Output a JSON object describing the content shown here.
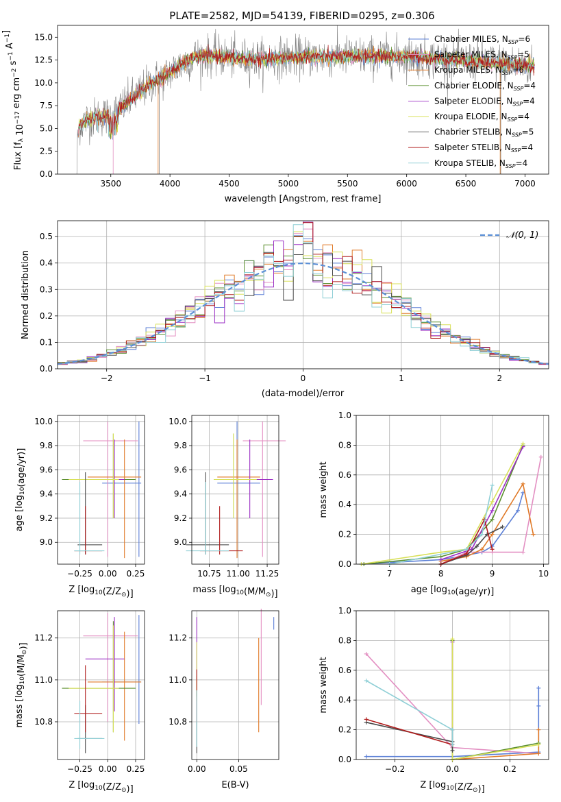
{
  "colors": {
    "miles_chabrier": "#5b7fd6",
    "miles_salpeter": "#e38fc2",
    "miles_kroupa": "#e07a28",
    "elodie_chabrier": "#5b8f2f",
    "elodie_salpeter": "#9b2fc4",
    "elodie_kroupa": "#d8e058",
    "stelib_chabrier": "#4a4a4a",
    "stelib_salpeter": "#b01c1c",
    "stelib_kroupa": "#8fcfd6",
    "gray_spectrum": "#808080",
    "gauss": "#5b8fd6",
    "grid": "#b0b0b0"
  },
  "chart_data": [
    {
      "id": "spectrum",
      "type": "line",
      "title": "PLATE=2582, MJD=54139, FIBERID=0295, z=0.306",
      "xlabel": "wavelength [Angstrom, rest frame]",
      "ylabel": "Flux [f_λ 10^-17 erg cm^-2 s^-1 A^-1]",
      "xlim": [
        3050,
        7200
      ],
      "ylim": [
        0,
        16.3
      ],
      "xticks": [
        3500,
        4000,
        4500,
        5000,
        5500,
        6000,
        6500,
        7000
      ],
      "yticks": [
        0.0,
        2.5,
        5.0,
        7.5,
        10.0,
        12.5,
        15.0
      ],
      "grid": false,
      "legend_position": "top-right",
      "legend": [
        {
          "label": "Chabrier MILES, N_SSP=6",
          "color_key": "miles_chabrier"
        },
        {
          "label": "Salpeter MILES, N_SSP=5",
          "color_key": "miles_salpeter"
        },
        {
          "label": "Kroupa MILES, N_SSP=6",
          "color_key": "miles_kroupa"
        },
        {
          "label": "Chabrier ELODIE, N_SSP=4",
          "color_key": "elodie_chabrier"
        },
        {
          "label": "Salpeter ELODIE, N_SSP=4",
          "color_key": "elodie_salpeter"
        },
        {
          "label": "Kroupa ELODIE, N_SSP=4",
          "color_key": "elodie_kroupa"
        },
        {
          "label": "Chabrier STELIB, N_SSP=5",
          "color_key": "stelib_chabrier"
        },
        {
          "label": "Salpeter STELIB, N_SSP=4",
          "color_key": "stelib_salpeter"
        },
        {
          "label": "Kroupa STELIB, N_SSP=4",
          "color_key": "stelib_kroupa"
        }
      ],
      "envelope": {
        "x": [
          3200,
          3230,
          3300,
          3400,
          3500,
          3560,
          3650,
          3750,
          3800,
          3850,
          3900,
          3950,
          4000,
          4100,
          4200,
          4300,
          4400,
          4500,
          4600,
          4700,
          4800,
          4900,
          5000,
          5200,
          5400,
          5600,
          5800,
          6000,
          6200,
          6400,
          6600,
          6800,
          7000,
          7100
        ],
        "y": [
          0,
          5.3,
          6.0,
          6.3,
          6.4,
          7.0,
          8.0,
          9.0,
          9.6,
          10.0,
          10.4,
          10.6,
          11.2,
          12.0,
          12.8,
          13.0,
          12.9,
          12.8,
          12.6,
          12.6,
          12.6,
          12.7,
          12.8,
          12.9,
          12.9,
          12.9,
          12.9,
          12.9,
          12.7,
          12.5,
          12.3,
          12.1,
          11.9,
          11.8
        ]
      }
    },
    {
      "id": "residuals",
      "type": "line",
      "xlabel": "(data-model)/error",
      "ylabel": "Normed distribution",
      "xlim": [
        -2.5,
        2.5
      ],
      "ylim": [
        0,
        0.56
      ],
      "xticks": [
        -2,
        -1,
        0,
        1,
        2
      ],
      "yticks": [
        0.0,
        0.1,
        0.2,
        0.3,
        0.4,
        0.5
      ],
      "grid": true,
      "legend_position": "top-right",
      "legend": [
        {
          "label": "𝒩(0, 1)",
          "color_key": "gauss"
        }
      ],
      "bin_edges_range": [
        -2.5,
        2.5
      ],
      "bin_count": 50
    },
    {
      "id": "age_vs_Z",
      "type": "scatter",
      "xlabel": "Z [log10(Z/Z☉)]",
      "ylabel": "age  [log10(age/yr)]",
      "xlim": [
        -0.45,
        0.33
      ],
      "ylim": [
        8.82,
        10.05
      ],
      "xticks": [
        -0.25,
        0.0,
        0.25
      ],
      "yticks": [
        9.0,
        9.2,
        9.4,
        9.6,
        9.8,
        10.0
      ],
      "grid": true
    },
    {
      "id": "age_vs_mass",
      "type": "scatter",
      "xlabel": "mass [log10(M/M☉)]",
      "xlim": [
        10.6,
        11.35
      ],
      "ylim": [
        8.82,
        10.05
      ],
      "xticks": [
        10.75,
        11.0,
        11.25
      ],
      "yticks": [
        9.0,
        9.2,
        9.4,
        9.6,
        9.8,
        10.0
      ],
      "grid": true
    },
    {
      "id": "mw_vs_age",
      "type": "line",
      "xlabel": "age  [log10(age/yr)]",
      "ylabel": "mass weight",
      "xlim": [
        6.35,
        10.1
      ],
      "ylim": [
        0,
        1.0
      ],
      "xticks": [
        7,
        8,
        9,
        10
      ],
      "yticks": [
        0.0,
        0.2,
        0.4,
        0.6,
        0.8,
        1.0
      ],
      "grid": true,
      "series": [
        {
          "color_key": "miles_chabrier",
          "x": [
            6.45,
            8.0,
            8.5,
            8.8,
            9.0,
            9.5,
            9.6
          ],
          "y": [
            0.0,
            0.03,
            0.06,
            0.08,
            0.12,
            0.36,
            0.48
          ]
        },
        {
          "color_key": "miles_salpeter",
          "x": [
            8.0,
            8.5,
            9.0,
            9.6,
            9.95
          ],
          "y": [
            0.0,
            0.08,
            0.08,
            0.08,
            0.72
          ]
        },
        {
          "color_key": "miles_kroupa",
          "x": [
            8.0,
            8.5,
            8.8,
            9.0,
            9.6,
            9.8
          ],
          "y": [
            0.02,
            0.05,
            0.1,
            0.2,
            0.54,
            0.2
          ]
        },
        {
          "color_key": "elodie_chabrier",
          "x": [
            6.5,
            8.0,
            8.5,
            9.0,
            9.6
          ],
          "y": [
            0.0,
            0.05,
            0.1,
            0.3,
            0.8
          ]
        },
        {
          "color_key": "elodie_salpeter",
          "x": [
            8.0,
            8.6,
            9.0,
            9.6
          ],
          "y": [
            0.03,
            0.1,
            0.36,
            0.79
          ]
        },
        {
          "color_key": "elodie_kroupa",
          "x": [
            6.45,
            8.0,
            8.5,
            9.0,
            9.6
          ],
          "y": [
            0.0,
            0.08,
            0.1,
            0.42,
            0.81
          ]
        },
        {
          "color_key": "stelib_chabrier",
          "x": [
            8.0,
            8.5,
            8.7,
            8.9,
            9.2
          ],
          "y": [
            0.0,
            0.06,
            0.12,
            0.2,
            0.25
          ]
        },
        {
          "color_key": "stelib_salpeter",
          "x": [
            8.0,
            8.5,
            8.85,
            9.0
          ],
          "y": [
            0.0,
            0.07,
            0.3,
            0.1
          ]
        },
        {
          "color_key": "stelib_kroupa",
          "x": [
            7.0,
            8.5,
            8.8,
            9.0
          ],
          "y": [
            0.0,
            0.1,
            0.2,
            0.53
          ]
        }
      ]
    },
    {
      "id": "mass_vs_Z",
      "type": "scatter",
      "xlabel": "Z [log10(Z/Z☉)]",
      "ylabel": "mass [log10(M/M☉)]",
      "xlim": [
        -0.45,
        0.33
      ],
      "ylim": [
        10.62,
        11.33
      ],
      "xticks": [
        -0.25,
        0.0,
        0.25
      ],
      "yticks": [
        10.8,
        11.0,
        11.2
      ],
      "grid": true
    },
    {
      "id": "mass_vs_ebv",
      "type": "scatter",
      "xlabel": "E(B-V)",
      "xlim": [
        -0.006,
        0.098
      ],
      "ylim": [
        10.62,
        11.33
      ],
      "xticks": [
        0.0,
        0.05
      ],
      "yticks": [
        10.8,
        11.0,
        11.2
      ],
      "grid": true
    },
    {
      "id": "mw_vs_Z",
      "type": "line",
      "xlabel": "Z [log10(Z/Z☉)]",
      "ylabel": "mass weight",
      "xlim": [
        -0.335,
        0.335
      ],
      "ylim": [
        0,
        1.0
      ],
      "xticks": [
        -0.2,
        0.0,
        0.2
      ],
      "yticks": [
        0.0,
        0.2,
        0.4,
        0.6,
        0.8,
        1.0
      ],
      "grid": true,
      "series": [
        {
          "color_key": "miles_chabrier",
          "x": [
            -0.3,
            0.0,
            0.3,
            0.3,
            0.3
          ],
          "y": [
            0.02,
            0.02,
            0.05,
            0.36,
            0.48
          ]
        },
        {
          "color_key": "miles_salpeter",
          "x": [
            -0.3,
            0.0,
            0.3
          ],
          "y": [
            0.71,
            0.08,
            0.04
          ]
        },
        {
          "color_key": "miles_kroupa",
          "x": [
            0.0,
            0.3,
            0.3
          ],
          "y": [
            0.0,
            0.04,
            0.2
          ]
        },
        {
          "color_key": "elodie_chabrier",
          "x": [
            0.0,
            0.0,
            0.3
          ],
          "y": [
            0.8,
            0.0,
            0.11
          ]
        },
        {
          "color_key": "elodie_salpeter",
          "x": [
            0.0,
            0.0
          ],
          "y": [
            0.1,
            0.79
          ]
        },
        {
          "color_key": "elodie_kroupa",
          "x": [
            0.0,
            0.0,
            0.3
          ],
          "y": [
            0.81,
            0.0,
            0.1
          ]
        },
        {
          "color_key": "stelib_chabrier",
          "x": [
            -0.3,
            0.0,
            0.0,
            0.0
          ],
          "y": [
            0.25,
            0.12,
            0.2,
            0.06
          ]
        },
        {
          "color_key": "stelib_salpeter",
          "x": [
            -0.3,
            0.0
          ],
          "y": [
            0.27,
            0.1
          ]
        },
        {
          "color_key": "stelib_kroupa",
          "x": [
            -0.3,
            0.0,
            0.0
          ],
          "y": [
            0.53,
            0.2,
            0.1
          ]
        }
      ]
    }
  ],
  "errorbars": {
    "age_Z_mass": [
      {
        "color_key": "miles_chabrier",
        "Z": 0.28,
        "age": 9.49,
        "age_lo": 8.88,
        "age_hi": 10.0,
        "Z_lo": -0.05,
        "Z_hi": 0.3,
        "mass": 10.99,
        "mass_lo": 10.79,
        "mass_hi": 11.31,
        "ebv": 0.092,
        "m_lo": 11.24,
        "m_hi": 11.3
      },
      {
        "color_key": "miles_salpeter",
        "Z": 0.0,
        "age": 9.84,
        "age_lo": 8.88,
        "age_hi": 10.0,
        "Z_lo": -0.22,
        "Z_hi": 0.27,
        "mass": 11.21,
        "mass_lo": 10.8,
        "mass_hi": 11.32,
        "ebv": 0.077,
        "m_lo": 10.88,
        "m_hi": 11.34
      },
      {
        "color_key": "miles_kroupa",
        "Z": 0.15,
        "age": 9.54,
        "age_lo": 8.87,
        "age_hi": 9.85,
        "Z_lo": -0.18,
        "Z_hi": 0.3,
        "mass": 10.99,
        "mass_lo": 10.71,
        "mass_hi": 11.23,
        "ebv": 0.074,
        "m_lo": 10.75,
        "m_hi": 11.2
      },
      {
        "color_key": "elodie_chabrier",
        "Z": 0.05,
        "age": 9.52,
        "age_lo": 9.2,
        "age_hi": 9.9,
        "Z_lo": -0.41,
        "Z_hi": 0.25,
        "mass": 10.96,
        "mass_lo": 10.75,
        "mass_hi": 11.28,
        "ebv": 0.0,
        "m_lo": 10.92,
        "m_hi": 11.02
      },
      {
        "color_key": "elodie_salpeter",
        "Z": 0.06,
        "age": 9.52,
        "age_lo": 9.2,
        "age_hi": 9.85,
        "Z_lo": -0.2,
        "Z_hi": 0.15,
        "mass": 11.1,
        "mass_lo": 10.85,
        "mass_hi": 11.3,
        "ebv": 0.0,
        "m_lo": 11.0,
        "m_hi": 11.3
      },
      {
        "color_key": "elodie_kroupa",
        "Z": 0.05,
        "age": 9.52,
        "age_lo": 9.2,
        "age_hi": 9.9,
        "Z_lo": -0.35,
        "Z_hi": 0.1,
        "mass": 10.96,
        "mass_lo": 10.75,
        "mass_hi": 11.26,
        "ebv": 0.0,
        "m_lo": 10.9,
        "m_hi": 11.18
      },
      {
        "color_key": "stelib_chabrier",
        "Z": -0.2,
        "age": 8.98,
        "age_lo": 8.9,
        "age_hi": 9.58,
        "Z_lo": -0.27,
        "Z_hi": -0.05,
        "mass": 10.72,
        "mass_lo": 10.65,
        "mass_hi": 10.88,
        "ebv": 0.0,
        "m_lo": 10.65,
        "m_hi": 10.8
      },
      {
        "color_key": "stelib_salpeter",
        "Z": -0.2,
        "age": 8.93,
        "age_lo": 8.9,
        "age_hi": 9.3,
        "Z_lo": -0.3,
        "Z_hi": -0.05,
        "mass": 10.84,
        "mass_lo": 10.75,
        "mass_hi": 11.07,
        "ebv": 0.0,
        "m_lo": 10.8,
        "m_hi": 11.05
      },
      {
        "color_key": "stelib_kroupa",
        "Z": -0.25,
        "age": 8.93,
        "age_lo": 8.9,
        "age_hi": 9.5,
        "Z_lo": -0.3,
        "Z_hi": -0.03,
        "mass": 10.72,
        "mass_lo": 10.67,
        "mass_hi": 10.9,
        "ebv": 0.0,
        "m_lo": 10.68,
        "m_hi": 10.95
      }
    ]
  }
}
